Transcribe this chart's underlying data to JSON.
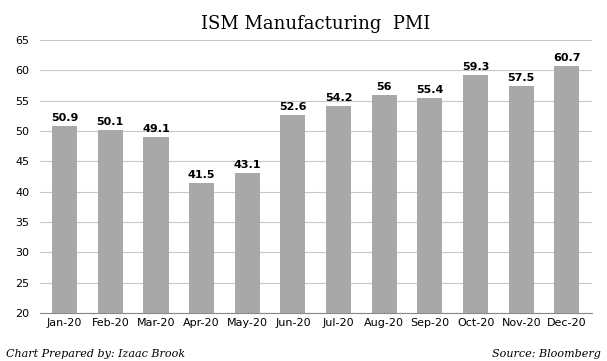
{
  "title": "ISM Manufacturing  PMI",
  "categories": [
    "Jan-20",
    "Feb-20",
    "Mar-20",
    "Apr-20",
    "May-20",
    "Jun-20",
    "Jul-20",
    "Aug-20",
    "Sep-20",
    "Oct-20",
    "Nov-20",
    "Dec-20"
  ],
  "values": [
    50.9,
    50.1,
    49.1,
    41.5,
    43.1,
    52.6,
    54.2,
    56.0,
    55.4,
    59.3,
    57.5,
    60.7
  ],
  "value_labels": [
    "50.9",
    "50.1",
    "49.1",
    "41.5",
    "43.1",
    "52.6",
    "54.2",
    "56",
    "55.4",
    "59.3",
    "57.5",
    "60.7"
  ],
  "bar_color": "#a8a8a8",
  "ylim": [
    20,
    65
  ],
  "yticks": [
    20,
    25,
    30,
    35,
    40,
    45,
    50,
    55,
    60,
    65
  ],
  "background_color": "#ffffff",
  "grid_color": "#c8c8c8",
  "title_fontsize": 13,
  "tick_fontsize": 8,
  "label_fontsize": 8,
  "value_fontsize": 8,
  "footer_left": "Chart Prepared by: Izaac Brook",
  "footer_right": "Source: Bloomberg"
}
